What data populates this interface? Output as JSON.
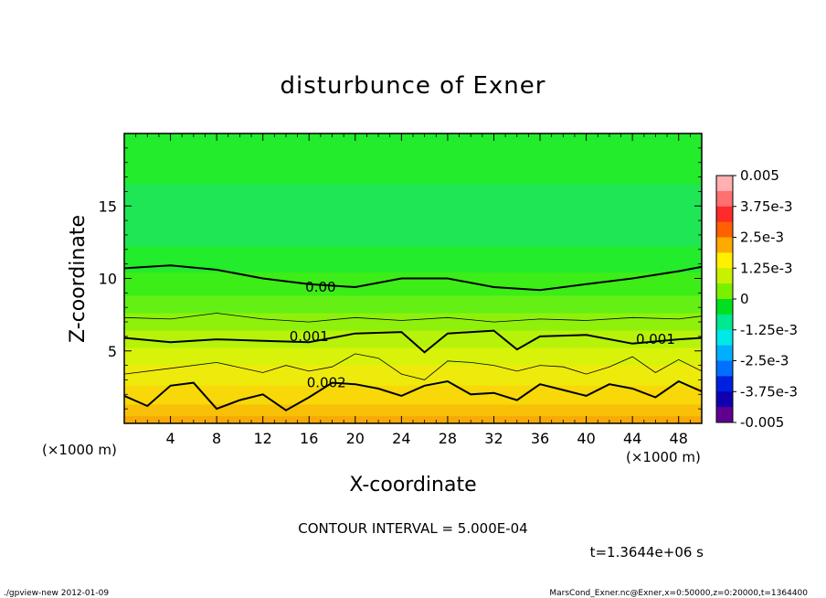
{
  "chart_data": {
    "type": "heatmap",
    "title": "disturbunce of Exner",
    "xlabel": "X-coordinate",
    "ylabel": "Z-coordinate",
    "x_unit_left": "(×1000 m)",
    "x_unit_right": "(×1000 m)",
    "xlim": [
      0,
      50
    ],
    "ylim": [
      0,
      20
    ],
    "x_ticks": [
      "4",
      "8",
      "12",
      "16",
      "20",
      "24",
      "28",
      "32",
      "36",
      "40",
      "44",
      "48"
    ],
    "y_ticks": [
      "5",
      "10",
      "15"
    ],
    "contour_labels": [
      {
        "text": "0.00",
        "x": 17.0,
        "y": 9.4
      },
      {
        "text": "0.001",
        "x": 16.0,
        "y": 6.0
      },
      {
        "text": "0.001",
        "x": 46.0,
        "y": 5.8
      },
      {
        "text": "0.002",
        "x": 17.5,
        "y": 2.8
      }
    ],
    "contour_lines": [
      {
        "style": "thick",
        "points": [
          [
            0,
            10.7
          ],
          [
            4,
            10.9
          ],
          [
            8,
            10.6
          ],
          [
            12,
            10.0
          ],
          [
            16,
            9.6
          ],
          [
            20,
            9.4
          ],
          [
            24,
            10.0
          ],
          [
            28,
            10.0
          ],
          [
            32,
            9.4
          ],
          [
            36,
            9.2
          ],
          [
            40,
            9.6
          ],
          [
            44,
            10.0
          ],
          [
            48,
            10.5
          ],
          [
            50,
            10.8
          ]
        ]
      },
      {
        "style": "thin",
        "points": [
          [
            0,
            7.3
          ],
          [
            4,
            7.2
          ],
          [
            8,
            7.6
          ],
          [
            12,
            7.2
          ],
          [
            16,
            7.0
          ],
          [
            20,
            7.3
          ],
          [
            24,
            7.1
          ],
          [
            28,
            7.3
          ],
          [
            32,
            7.0
          ],
          [
            36,
            7.2
          ],
          [
            40,
            7.1
          ],
          [
            44,
            7.3
          ],
          [
            48,
            7.2
          ],
          [
            50,
            7.4
          ]
        ]
      },
      {
        "style": "thick",
        "points": [
          [
            0,
            5.9
          ],
          [
            4,
            5.6
          ],
          [
            8,
            5.8
          ],
          [
            12,
            5.7
          ],
          [
            16,
            5.6
          ],
          [
            20,
            6.2
          ],
          [
            24,
            6.3
          ],
          [
            26,
            4.9
          ],
          [
            28,
            6.2
          ],
          [
            32,
            6.4
          ],
          [
            34,
            5.1
          ],
          [
            36,
            6.0
          ],
          [
            40,
            6.1
          ],
          [
            44,
            5.5
          ],
          [
            48,
            5.8
          ],
          [
            50,
            5.9
          ]
        ]
      },
      {
        "style": "thin",
        "points": [
          [
            0,
            3.4
          ],
          [
            4,
            3.8
          ],
          [
            8,
            4.2
          ],
          [
            12,
            3.5
          ],
          [
            14,
            4.0
          ],
          [
            16,
            3.6
          ],
          [
            18,
            3.9
          ],
          [
            20,
            4.8
          ],
          [
            22,
            4.5
          ],
          [
            24,
            3.4
          ],
          [
            26,
            3.0
          ],
          [
            28,
            4.3
          ],
          [
            30,
            4.2
          ],
          [
            32,
            4.0
          ],
          [
            34,
            3.6
          ],
          [
            36,
            4.0
          ],
          [
            38,
            3.9
          ],
          [
            40,
            3.4
          ],
          [
            42,
            3.9
          ],
          [
            44,
            4.6
          ],
          [
            46,
            3.5
          ],
          [
            48,
            4.4
          ],
          [
            50,
            3.6
          ]
        ]
      },
      {
        "style": "thick",
        "points": [
          [
            0,
            1.9
          ],
          [
            2,
            1.2
          ],
          [
            4,
            2.6
          ],
          [
            6,
            2.8
          ],
          [
            8,
            1.0
          ],
          [
            10,
            1.6
          ],
          [
            12,
            2.0
          ],
          [
            14,
            0.9
          ],
          [
            16,
            1.8
          ],
          [
            18,
            2.8
          ],
          [
            20,
            2.7
          ],
          [
            22,
            2.4
          ],
          [
            24,
            1.9
          ],
          [
            26,
            2.6
          ],
          [
            28,
            2.9
          ],
          [
            30,
            2.0
          ],
          [
            32,
            2.1
          ],
          [
            34,
            1.6
          ],
          [
            36,
            2.7
          ],
          [
            38,
            2.3
          ],
          [
            40,
            1.9
          ],
          [
            42,
            2.7
          ],
          [
            44,
            2.4
          ],
          [
            46,
            1.8
          ],
          [
            48,
            2.9
          ],
          [
            50,
            2.2
          ]
        ]
      }
    ],
    "color_bands": [
      {
        "y_top": 20,
        "color": "#22ec2c"
      },
      {
        "y_top": 16.5,
        "color": "#1fe655"
      },
      {
        "y_top": 12.2,
        "color": "#22ec2c"
      },
      {
        "y_top": 10.4,
        "color": "#3ced18"
      },
      {
        "y_top": 8.8,
        "color": "#64f014"
      },
      {
        "y_top": 7.6,
        "color": "#8ff00c"
      },
      {
        "y_top": 6.4,
        "color": "#b7f20a"
      },
      {
        "y_top": 5.2,
        "color": "#d9f20a"
      },
      {
        "y_top": 4.0,
        "color": "#eeea0c"
      },
      {
        "y_top": 2.6,
        "color": "#f8d808"
      },
      {
        "y_top": 1.3,
        "color": "#f8c006"
      },
      {
        "y_top": 0.5,
        "color": "#f7aa06"
      }
    ],
    "colorbar": {
      "range": [
        -0.005,
        0.005
      ],
      "tick_labels": [
        "0.005",
        "3.75e-3",
        "2.5e-3",
        "1.25e-3",
        "0",
        "-1.25e-3",
        "-2.5e-3",
        "-3.75e-3",
        "-0.005"
      ],
      "colors": [
        "#ffb0b0",
        "#ff7070",
        "#ff2a2a",
        "#ff6000",
        "#ffaa00",
        "#fff000",
        "#c8f000",
        "#78f000",
        "#00e020",
        "#00e890",
        "#00e8e8",
        "#00b0ff",
        "#0070ff",
        "#0020e0",
        "#1000b0",
        "#600090"
      ]
    }
  },
  "footer": {
    "contour_interval": "CONTOUR INTERVAL = 5.000E-04",
    "time": "t=1.3644e+06 s",
    "left_note": "./gpview-new  2012-01-09",
    "right_note": "MarsCond_Exner.nc@Exner,x=0:50000,z=0:20000,t=1364400"
  }
}
